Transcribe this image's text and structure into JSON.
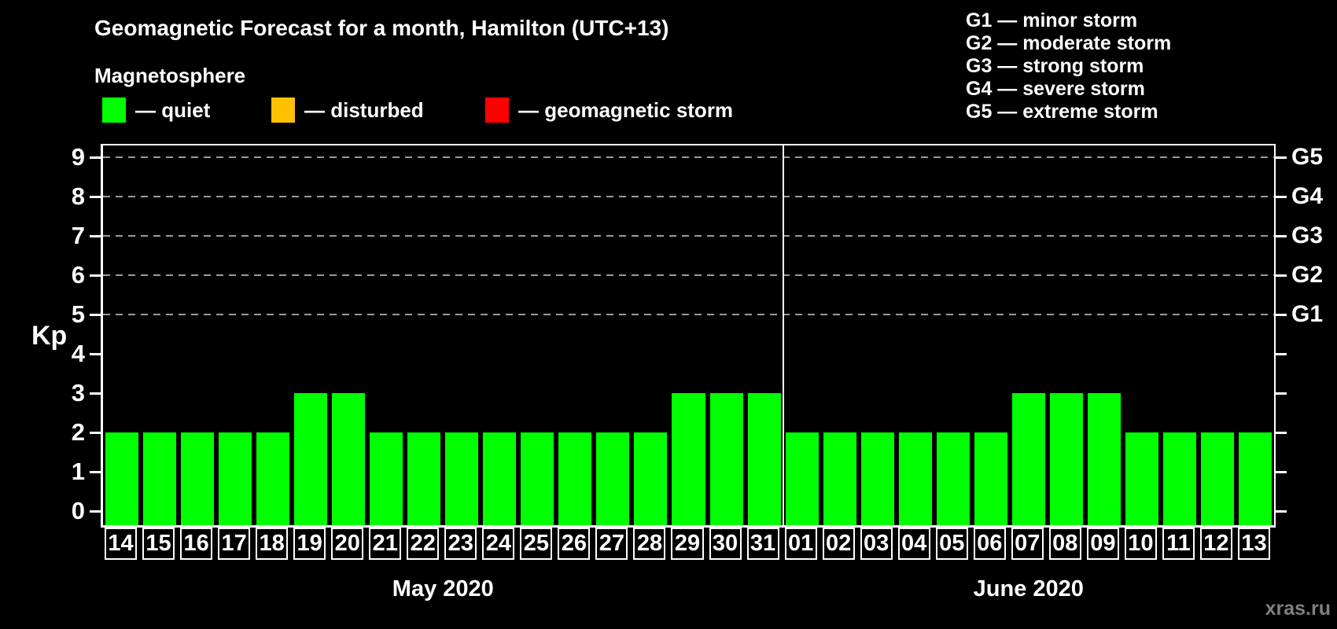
{
  "title": "Geomagnetic Forecast for a month, Hamilton (UTC+13)",
  "subtitle": "Magnetosphere",
  "legend": {
    "items": [
      {
        "name": "quiet",
        "label": "— quiet",
        "color": "#00ff00"
      },
      {
        "name": "disturbed",
        "label": "— disturbed",
        "color": "#ffc000"
      },
      {
        "name": "geomagnetic-storm",
        "label": "— geomagnetic storm",
        "color": "#ff0000"
      }
    ]
  },
  "storm_legend": [
    "G1 — minor storm",
    "G2 — moderate storm",
    "G3 — strong storm",
    "G4 — severe storm",
    "G5 — extreme storm"
  ],
  "watermark": "xras.ru",
  "chart_data": {
    "type": "bar",
    "title": "Geomagnetic Forecast for a month, Hamilton (UTC+13)",
    "ylabel": "Kp",
    "ylim": [
      -0.35,
      9.3
    ],
    "y_ticks": [
      0,
      1,
      2,
      3,
      4,
      5,
      6,
      7,
      8,
      9
    ],
    "gridlines_at": [
      5,
      6,
      7,
      8,
      9
    ],
    "right_axis": [
      {
        "kp": 5,
        "label": "G1"
      },
      {
        "kp": 6,
        "label": "G2"
      },
      {
        "kp": 7,
        "label": "G3"
      },
      {
        "kp": 8,
        "label": "G4"
      },
      {
        "kp": 9,
        "label": "G5"
      }
    ],
    "bar_color": "#00ff00",
    "grid_color": "#9a9a9a",
    "groups": [
      {
        "label": "May 2020",
        "categories": [
          "14",
          "15",
          "16",
          "17",
          "18",
          "19",
          "20",
          "21",
          "22",
          "23",
          "24",
          "25",
          "26",
          "27",
          "28",
          "29",
          "30",
          "31"
        ],
        "values": [
          2,
          2,
          2,
          2,
          2,
          3,
          3,
          2,
          2,
          2,
          2,
          2,
          2,
          2,
          2,
          3,
          3,
          3
        ]
      },
      {
        "label": "June 2020",
        "categories": [
          "01",
          "02",
          "03",
          "04",
          "05",
          "06",
          "07",
          "08",
          "09",
          "10",
          "11",
          "12",
          "13"
        ],
        "values": [
          2,
          2,
          2,
          2,
          2,
          2,
          3,
          3,
          3,
          2,
          2,
          2,
          2
        ]
      }
    ]
  }
}
